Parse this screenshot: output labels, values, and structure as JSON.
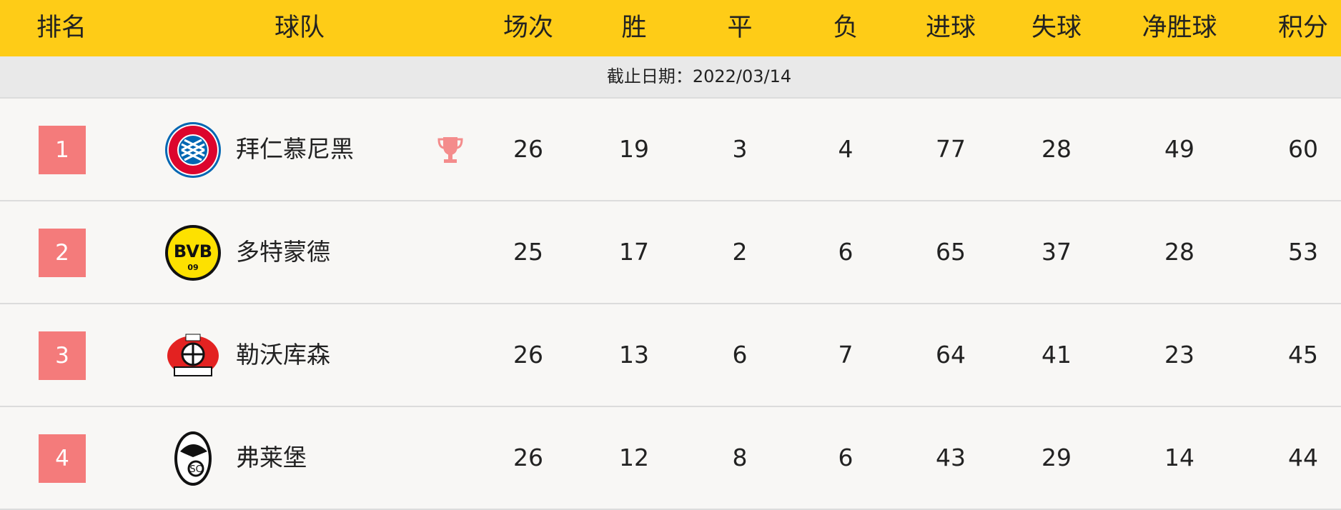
{
  "header": {
    "rank": "排名",
    "team": "球队",
    "played": "场次",
    "won": "胜",
    "drawn": "平",
    "lost": "负",
    "goals_for": "进球",
    "goals_against": "失球",
    "goal_diff": "净胜球",
    "points": "积分"
  },
  "date_label": "截止日期：2022/03/14",
  "colors": {
    "header_bg": "#fecc17",
    "rank_badge": "#f47b7b",
    "trophy": "#f48c8c"
  },
  "rows": [
    {
      "rank": "1",
      "team": "拜仁慕尼黑",
      "logo": "bayern-logo",
      "trophy": true,
      "played": "26",
      "won": "19",
      "drawn": "3",
      "lost": "4",
      "gf": "77",
      "ga": "28",
      "gd": "49",
      "pts": "60"
    },
    {
      "rank": "2",
      "team": "多特蒙德",
      "logo": "bvb-logo",
      "played": "25",
      "won": "17",
      "drawn": "2",
      "lost": "6",
      "gf": "65",
      "ga": "37",
      "gd": "28",
      "pts": "53"
    },
    {
      "rank": "3",
      "team": "勒沃库森",
      "logo": "leverkusen-logo",
      "played": "26",
      "won": "13",
      "drawn": "6",
      "lost": "7",
      "gf": "64",
      "ga": "41",
      "gd": "23",
      "pts": "45"
    },
    {
      "rank": "4",
      "team": "弗莱堡",
      "logo": "freiburg-logo",
      "played": "26",
      "won": "12",
      "drawn": "8",
      "lost": "6",
      "gf": "43",
      "ga": "29",
      "gd": "14",
      "pts": "44"
    }
  ]
}
